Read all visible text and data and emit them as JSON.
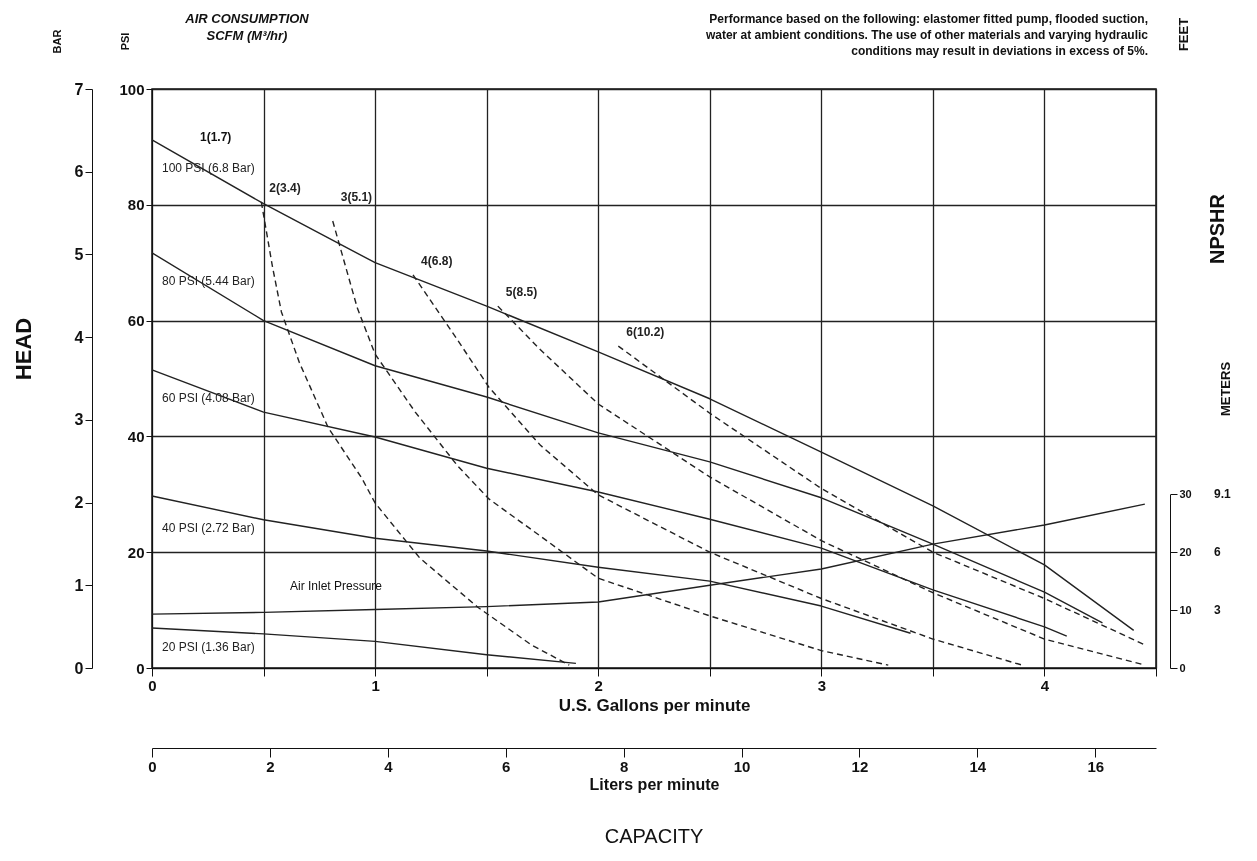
{
  "chart_data": {
    "type": "line",
    "xlabel": "U.S. Gallons per minute",
    "ylabel": "PSI",
    "y2label": "BAR",
    "y3label": "FEET",
    "x2label": "Liters per minute",
    "xlim": [
      0,
      4.5
    ],
    "xticks": [
      0,
      {
        "value": 0.5,
        "label": null
      },
      1,
      {
        "value": 1.5,
        "label": null
      },
      2,
      {
        "value": 2.5,
        "label": null
      },
      3,
      {
        "value": 3.5,
        "label": null
      },
      4,
      {
        "value": 4.5,
        "label": null
      }
    ],
    "x2lim": [
      0,
      17.03
    ],
    "x2ticks": [
      0,
      2,
      4,
      6,
      8,
      10,
      12,
      14,
      16
    ],
    "ylim": [
      0,
      100
    ],
    "yticks": [
      0,
      20,
      40,
      60,
      80,
      100
    ],
    "y2lim": [
      0,
      7
    ],
    "y2ticks": [
      0,
      1,
      2,
      3,
      4,
      5,
      6,
      7
    ],
    "y3lim": [
      0,
      30
    ],
    "y3ticks": [
      0,
      10,
      20,
      30
    ],
    "grid": true,
    "line_style": "solid",
    "series": [
      {
        "name": "100 PSI (6.8 Bar)",
        "color": "#222222",
        "x": [
          0,
          0.5,
          1,
          1.5,
          2,
          2.5,
          3,
          3.5,
          4,
          4.4
        ],
        "values": [
          91.2,
          80.2,
          70,
          62.5,
          54.6,
          46.5,
          37.3,
          28,
          17.8,
          6.5
        ]
      },
      {
        "name": "80 PSI (5.44 Bar)",
        "color": "#222222",
        "x": [
          0,
          0.5,
          1,
          1.5,
          2,
          2.5,
          3,
          3.5,
          4,
          4.26
        ],
        "values": [
          71.7,
          60,
          52.2,
          46.8,
          40.6,
          35.6,
          29.4,
          21.4,
          13.1,
          7.8
        ]
      },
      {
        "name": "60 PSI (4.08 Bar)",
        "color": "#222222",
        "x": [
          0,
          0.5,
          1,
          1.5,
          2,
          2.5,
          3,
          3.5,
          4,
          4.1
        ],
        "values": [
          51.5,
          44.2,
          39.9,
          34.5,
          30.4,
          25.7,
          20.7,
          13.5,
          7.1,
          5.5
        ]
      },
      {
        "name": "40 PSI (2.72 Bar)",
        "color": "#222222",
        "x": [
          0,
          0.5,
          1,
          1.5,
          2,
          2.5,
          3,
          3.4
        ],
        "values": [
          29.7,
          25.6,
          22.4,
          20.2,
          17.4,
          15,
          10.7,
          6
        ]
      },
      {
        "name": "20 PSI (1.36 Bar)",
        "color": "#222222",
        "x": [
          0,
          0.5,
          1,
          1.5,
          1.9
        ],
        "values": [
          6.9,
          5.9,
          4.6,
          2.3,
          0.8
        ]
      },
      {
        "name": "2(3.4)",
        "color": "#222222",
        "line_style": "dashed",
        "x": [
          0.49,
          0.54,
          0.58,
          0.66,
          0.79,
          0.94,
          1,
          1.2,
          1.46,
          1.7,
          1.87
        ],
        "values": [
          80.5,
          69.3,
          61.5,
          52.8,
          41.5,
          32.8,
          28.5,
          19,
          10.5,
          4,
          0.5
        ]
      },
      {
        "name": "3(5.1)",
        "color": "#222222",
        "line_style": "dashed",
        "x": [
          0.81,
          0.92,
          1,
          1.18,
          1.37,
          1.51,
          1.74,
          2,
          2.5,
          3,
          3.3
        ],
        "values": [
          77.2,
          62.2,
          54.2,
          44.2,
          34.9,
          29.2,
          22.8,
          15.5,
          9,
          3,
          0.5
        ]
      },
      {
        "name": "4(6.8)",
        "color": "#222222",
        "line_style": "dashed",
        "x": [
          1.17,
          1.36,
          1.51,
          1.74,
          2,
          2.5,
          3,
          3.5,
          3.9
        ],
        "values": [
          67.9,
          57.2,
          48.5,
          38.5,
          29.9,
          20,
          12,
          5,
          0.5
        ]
      },
      {
        "name": "5(8.5)",
        "color": "#222222",
        "line_style": "dashed",
        "x": [
          1.55,
          1.74,
          2,
          2.5,
          3,
          3.5,
          4,
          4.45
        ],
        "values": [
          62.5,
          55,
          45.6,
          33,
          22,
          13,
          5,
          0.5
        ]
      },
      {
        "name": "6(10.2)",
        "color": "#222222",
        "line_style": "dashed",
        "x": [
          2.09,
          2.5,
          3,
          3.5,
          4,
          4.45
        ],
        "values": [
          55.6,
          44,
          31,
          20,
          12,
          4
        ]
      },
      {
        "color": "#222222",
        "axis": "y3",
        "x": [
          0,
          0.5,
          1,
          1.5,
          2,
          2.5,
          3,
          3.5,
          4,
          4.45
        ],
        "values": [
          9.3,
          9.6,
          10.1,
          10.6,
          11.4,
          14.3,
          17.1,
          21.4,
          24.7,
          28.3
        ]
      }
    ],
    "annotations": [
      "Performance based on the following: elastomer fitted pump, flooded suction, water at ambient conditions. The use of other materials and varying hydraulic conditions may result in deviations in excess of 5%.",
      "AIR CONSUMPTION SCFM (M³/hr)",
      "HEAD",
      "NPSHR",
      "CAPACITY",
      "Air Inlet Pressure",
      "1(1.7)",
      "METERS",
      "3",
      "6",
      "9.1"
    ]
  }
}
